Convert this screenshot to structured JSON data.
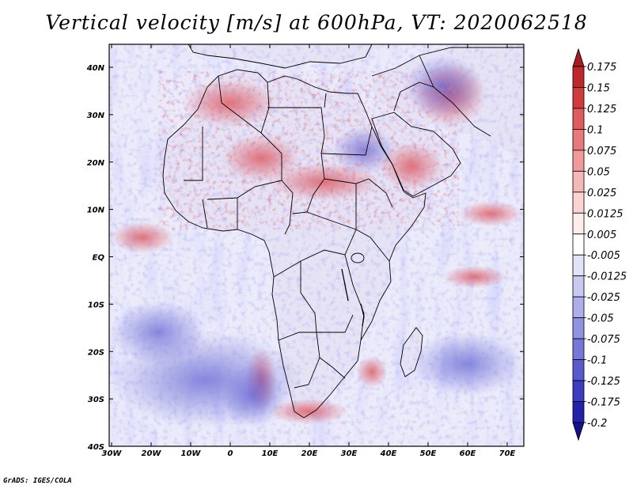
{
  "title": "Vertical velocity [m/s] at 600hPa, VT: 2020062518",
  "footer": "GrADS: IGES/COLA",
  "map": {
    "lon_range": [
      -30,
      75
    ],
    "lat_range": [
      -40,
      45
    ],
    "lon_ticks": [
      "30W",
      "20W",
      "10W",
      "0",
      "10E",
      "20E",
      "30E",
      "40E",
      "50E",
      "60E",
      "70E"
    ],
    "lat_ticks": [
      "40N",
      "30N",
      "20N",
      "10N",
      "EQ",
      "10S",
      "20S",
      "30S",
      "40S"
    ],
    "colorbar": {
      "levels": [
        "0.175",
        "0.15",
        "0.125",
        "0.1",
        "0.075",
        "0.05",
        "0.025",
        "0.0125",
        "0.005",
        "-0.005",
        "-0.0125",
        "-0.025",
        "-0.05",
        "-0.075",
        "-0.1",
        "-0.125",
        "-0.175",
        "-0.2"
      ],
      "colors": [
        "#a51c20",
        "#c0272b",
        "#d03b3d",
        "#df5b5d",
        "#e97a7a",
        "#f19a99",
        "#f6b8b6",
        "#fad3d2",
        "#fdeeed",
        "#ffffff",
        "#e3e3f8",
        "#c9c9f1",
        "#aeaeea",
        "#9292e2",
        "#7777da",
        "#5a5ad0",
        "#3d3dc2",
        "#2222a8",
        "#121290"
      ]
    },
    "colors": {
      "ocean_base": "#ebebfa",
      "land_base": "#e6e3f5",
      "border": "#000000"
    }
  }
}
